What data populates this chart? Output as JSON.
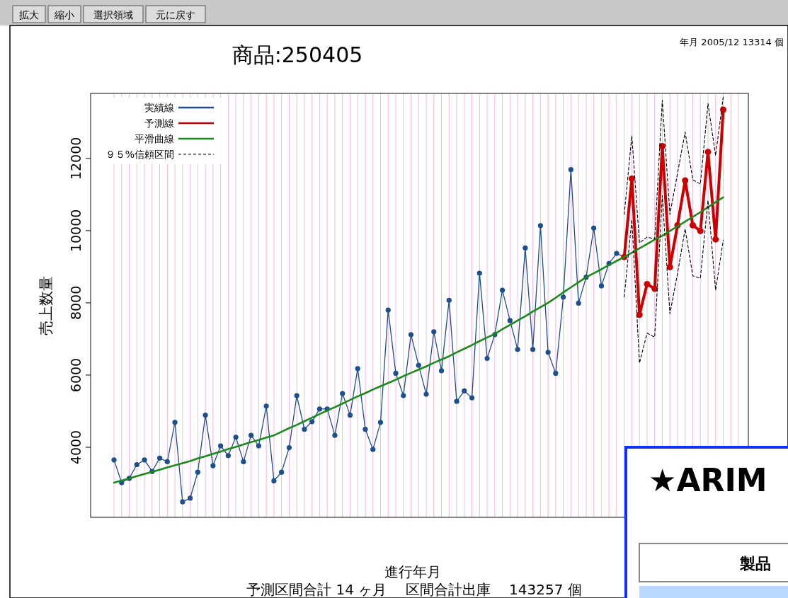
{
  "chart_data": {
    "type": "line",
    "title": "商品:250405",
    "xlabel": "進行年月",
    "ylabel": "売上数量",
    "annotations": [
      "拡大",
      "縮小",
      "選択領域",
      "元に戻す",
      "年月 2005/12  13314 個",
      "予測区間合計 14 ヶ月　 区間合計出庫　 143257 個",
      "★ARIM",
      "製品"
    ],
    "categories": [
      null,
      null,
      null,
      null,
      null,
      null,
      null,
      null,
      null,
      null,
      null,
      null,
      null,
      null,
      null,
      null,
      null,
      null,
      null,
      null,
      null,
      null,
      null,
      null,
      null,
      null,
      null,
      null,
      null,
      null,
      null,
      null,
      null,
      null,
      null,
      null,
      null,
      null,
      null,
      null,
      null,
      null,
      null,
      null,
      null,
      null,
      null,
      null,
      null,
      null,
      null,
      null,
      null,
      null,
      null,
      null,
      null,
      null,
      null,
      null,
      null,
      null,
      null,
      null,
      null,
      null,
      null,
      null,
      null,
      null,
      null,
      null,
      null,
      null,
      null,
      null,
      null,
      null,
      null,
      null,
      null
    ],
    "ylim": [
      2060,
      13800
    ],
    "yticks": [
      4000,
      6000,
      8000,
      10000,
      12000
    ],
    "grid": "x",
    "legend": "top left",
    "series": [
      {
        "name": "実績線",
        "color": "#1f4e8c",
        "marker": "circle",
        "line_style": "solid",
        "values": [
          3650,
          3020,
          3140,
          3520,
          3650,
          3330,
          3700,
          3600,
          4690,
          2490,
          2590,
          3310,
          4890,
          3490,
          4040,
          3770,
          4280,
          3600,
          4330,
          4040,
          5140,
          3070,
          3310,
          3990,
          5430,
          4500,
          4710,
          5060,
          5060,
          4330,
          5490,
          4890,
          6180,
          4500,
          3940,
          4690,
          7800,
          6050,
          5430,
          7120,
          6270,
          5470,
          7200,
          6120,
          8070,
          5270,
          5560,
          5370,
          8820,
          6460,
          7120,
          8350,
          7510,
          6710,
          9520,
          6710,
          10140,
          6630,
          6050,
          8160,
          11690,
          7990,
          8710,
          10070,
          8470,
          9090,
          9370,
          9270,
          null,
          null,
          null,
          null,
          null,
          null,
          null,
          null,
          null,
          null,
          null,
          null,
          null
        ]
      },
      {
        "name": "予測線",
        "color": "#cc0000",
        "marker": "circle",
        "line_style": "solid",
        "values": [
          null,
          null,
          null,
          null,
          null,
          null,
          null,
          null,
          null,
          null,
          null,
          null,
          null,
          null,
          null,
          null,
          null,
          null,
          null,
          null,
          null,
          null,
          null,
          null,
          null,
          null,
          null,
          null,
          null,
          null,
          null,
          null,
          null,
          null,
          null,
          null,
          null,
          null,
          null,
          null,
          null,
          null,
          null,
          null,
          null,
          null,
          null,
          null,
          null,
          null,
          null,
          null,
          null,
          null,
          null,
          null,
          null,
          null,
          null,
          null,
          null,
          null,
          null,
          null,
          null,
          null,
          null,
          9270,
          11440,
          7670,
          8520,
          8390,
          12340,
          8990,
          10150,
          11390,
          10150,
          9990,
          12180,
          9760,
          13350
        ]
      },
      {
        "name": "平滑曲線",
        "color": "#1a8a1a",
        "marker": "none",
        "line_style": "solid",
        "values": [
          3020,
          3080,
          3140,
          3200,
          3260,
          3320,
          3380,
          3440,
          3500,
          3560,
          3620,
          3690,
          3750,
          3820,
          3880,
          3950,
          4010,
          4080,
          4140,
          4200,
          4270,
          4330,
          4430,
          4530,
          4620,
          4720,
          4820,
          4920,
          5020,
          5110,
          5210,
          5310,
          5410,
          5500,
          5600,
          5690,
          5780,
          5870,
          5970,
          6060,
          6150,
          6240,
          6340,
          6430,
          6520,
          6630,
          6730,
          6830,
          6940,
          7040,
          7140,
          7270,
          7390,
          7510,
          7630,
          7760,
          7880,
          8000,
          8140,
          8290,
          8430,
          8570,
          8710,
          8820,
          8930,
          9050,
          9160,
          9270,
          9390,
          9510,
          9630,
          9750,
          9860,
          9990,
          10120,
          10250,
          10380,
          10510,
          10650,
          10790,
          10920
        ]
      },
      {
        "name": "９５%信頼区間",
        "color": "#000000",
        "marker": "none",
        "line_style": "dashed",
        "values": [
          null,
          null,
          null,
          null,
          null,
          null,
          null,
          null,
          null,
          null,
          null,
          null,
          null,
          null,
          null,
          null,
          null,
          null,
          null,
          null,
          null,
          null,
          null,
          null,
          null,
          null,
          null,
          null,
          null,
          null,
          null,
          null,
          null,
          null,
          null,
          null,
          null,
          null,
          null,
          null,
          null,
          null,
          null,
          null,
          null,
          null,
          null,
          null,
          null,
          null,
          null,
          null,
          null,
          null,
          null,
          null,
          null,
          null,
          null,
          null,
          null,
          null,
          null,
          null,
          null,
          null,
          null,
          10450,
          12630,
          9660,
          9820,
          9770,
          13610,
          10450,
          11590,
          12730,
          11410,
          11290,
          13520,
          12080,
          13700
        ]
      },
      {
        "color": "#000000",
        "marker": "none",
        "line_style": "dashed",
        "values": [
          null,
          null,
          null,
          null,
          null,
          null,
          null,
          null,
          null,
          null,
          null,
          null,
          null,
          null,
          null,
          null,
          null,
          null,
          null,
          null,
          null,
          null,
          null,
          null,
          null,
          null,
          null,
          null,
          null,
          null,
          null,
          null,
          null,
          null,
          null,
          null,
          null,
          null,
          null,
          null,
          null,
          null,
          null,
          null,
          null,
          null,
          null,
          null,
          null,
          null,
          null,
          null,
          null,
          null,
          null,
          null,
          null,
          null,
          null,
          null,
          null,
          null,
          null,
          null,
          null,
          null,
          null,
          8160,
          10310,
          6330,
          7160,
          7050,
          10970,
          7700,
          8810,
          10050,
          8750,
          8680,
          10840,
          8350,
          9730
        ]
      }
    ]
  }
}
